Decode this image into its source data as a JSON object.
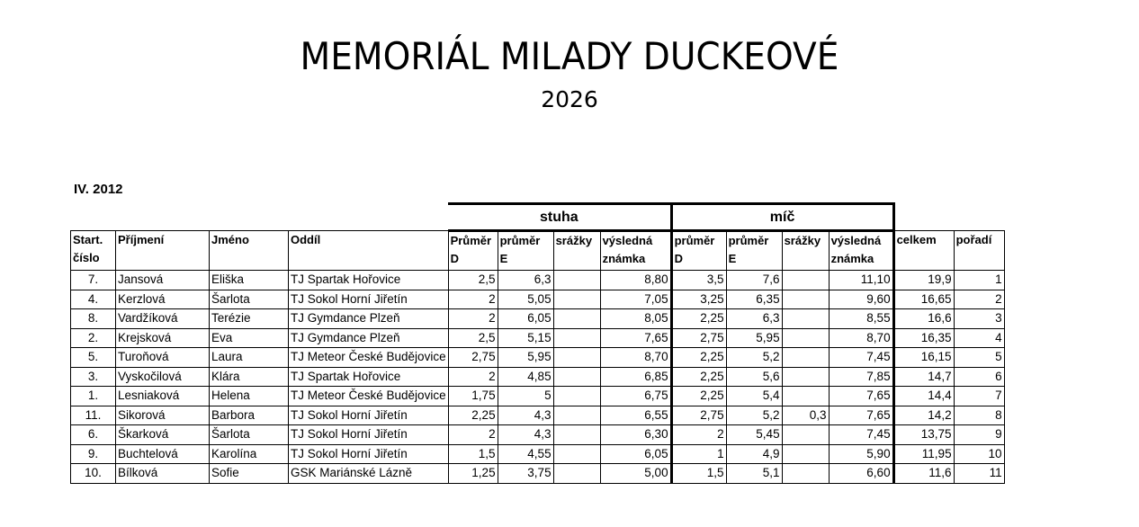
{
  "title": "MEMORIÁL MILADY DUCKEOVÉ",
  "year": "2026",
  "category": "IV. 2012",
  "groups": {
    "stuha": "stuha",
    "mic": "míč"
  },
  "headers": [
    "Start. číslo",
    "Příjmení",
    "Jméno",
    "Oddíl",
    "Průměr D",
    "průměr E",
    "srážky",
    "výsledná známka",
    "průměr D",
    "průměr E",
    "srážky",
    "výsledná známka",
    "celkem",
    "pořadí"
  ],
  "rows": [
    [
      "7.",
      "Jansová",
      "Eliška",
      "TJ Spartak Hořovice",
      "2,5",
      "6,3",
      "",
      "8,80",
      "3,5",
      "7,6",
      "",
      "11,10",
      "19,9",
      "1"
    ],
    [
      "4.",
      "Kerzlová",
      "Šarlota",
      "TJ Sokol Horní Jiřetín",
      "2",
      "5,05",
      "",
      "7,05",
      "3,25",
      "6,35",
      "",
      "9,60",
      "16,65",
      "2"
    ],
    [
      "8.",
      "Vardžíková",
      "Terézie",
      "TJ Gymdance Plzeň",
      "2",
      "6,05",
      "",
      "8,05",
      "2,25",
      "6,3",
      "",
      "8,55",
      "16,6",
      "3"
    ],
    [
      "2.",
      "Krejsková",
      "Eva",
      "TJ Gymdance Plzeň",
      "2,5",
      "5,15",
      "",
      "7,65",
      "2,75",
      "5,95",
      "",
      "8,70",
      "16,35",
      "4"
    ],
    [
      "5.",
      "Turoňová",
      "Laura",
      "TJ Meteor České Budějovice",
      "2,75",
      "5,95",
      "",
      "8,70",
      "2,25",
      "5,2",
      "",
      "7,45",
      "16,15",
      "5"
    ],
    [
      "3.",
      "Vyskočilová",
      "Klára",
      "TJ Spartak Hořovice",
      "2",
      "4,85",
      "",
      "6,85",
      "2,25",
      "5,6",
      "",
      "7,85",
      "14,7",
      "6"
    ],
    [
      "1.",
      "Lesniaková",
      "Helena",
      "TJ Meteor České Budějovice",
      "1,75",
      "5",
      "",
      "6,75",
      "2,25",
      "5,4",
      "",
      "7,65",
      "14,4",
      "7"
    ],
    [
      "11.",
      "Sikorová",
      "Barbora",
      "TJ Sokol Horní Jiřetín",
      "2,25",
      "4,3",
      "",
      "6,55",
      "2,75",
      "5,2",
      "0,3",
      "7,65",
      "14,2",
      "8"
    ],
    [
      "6.",
      "Škarková",
      "Šarlota",
      "TJ Sokol Horní Jiřetín",
      "2",
      "4,3",
      "",
      "6,30",
      "2",
      "5,45",
      "",
      "7,45",
      "13,75",
      "9"
    ],
    [
      "9.",
      "Buchtelová",
      "Karolína",
      "TJ Sokol Horní Jiřetín",
      "1,5",
      "4,55",
      "",
      "6,05",
      "1",
      "4,9",
      "",
      "5,90",
      "11,95",
      "10"
    ],
    [
      "10.",
      "Bílková",
      "Sofie",
      "GSK Mariánské Lázně",
      "1,25",
      "3,75",
      "",
      "5,00",
      "1,5",
      "5,1",
      "",
      "6,60",
      "11,6",
      "11"
    ]
  ]
}
